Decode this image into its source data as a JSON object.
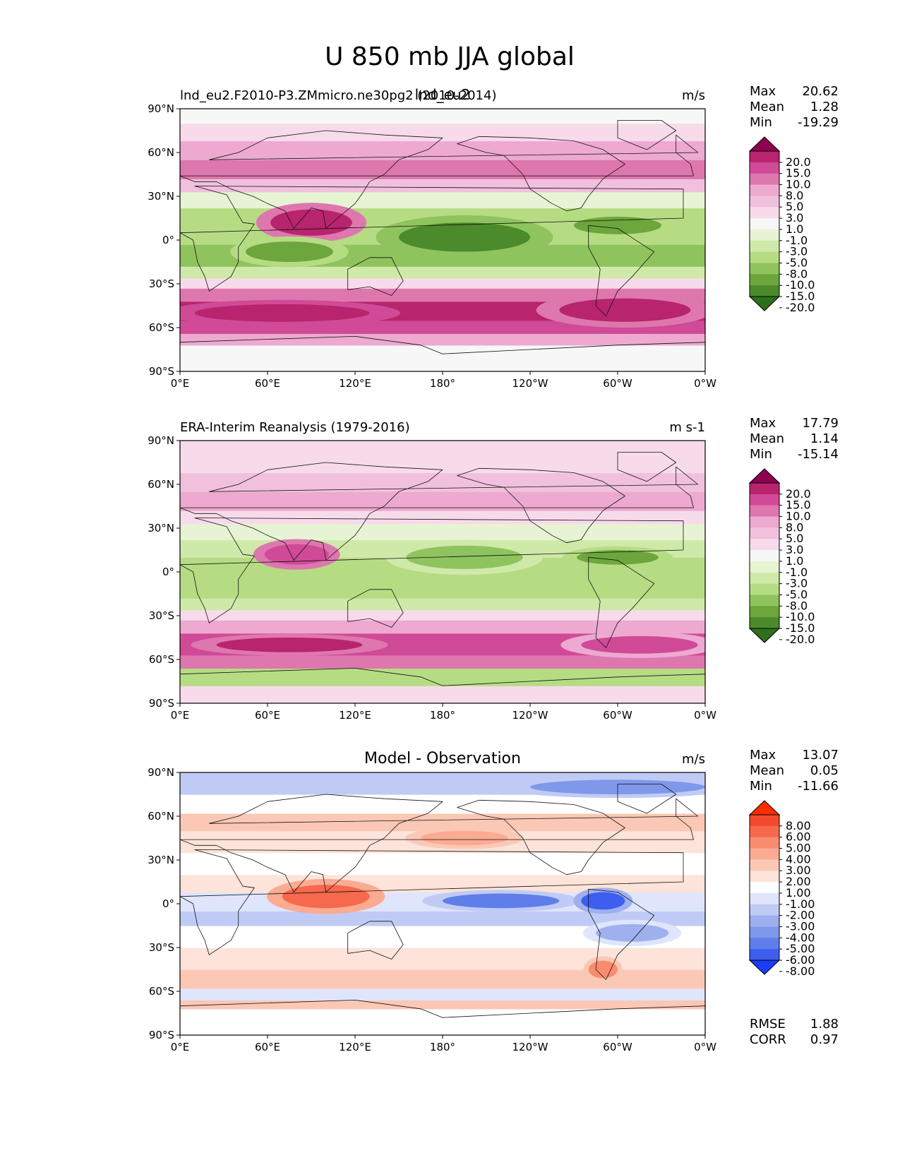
{
  "figure": {
    "title": "U 850 mb JJA global"
  },
  "chart_data": [
    {
      "type": "heatmap",
      "panel": "test",
      "title_left": "lnd_eu2.F2010-P3.ZMmicro.ne30pg2 (2010-2014)",
      "title_center": "lnd_eu2",
      "units": "m/s",
      "stats": [
        {
          "label": "Max",
          "value": "20.62"
        },
        {
          "label": "Mean",
          "value": "1.28"
        },
        {
          "label": "Min",
          "value": "-19.29"
        }
      ],
      "colorbar": {
        "labels": [
          "20.0",
          "15.0",
          "10.0",
          "8.0",
          "5.0",
          "3.0",
          "1.0",
          "-1.0",
          "-3.0",
          "-5.0",
          "-8.0",
          "-10.0",
          "-15.0",
          "-20.0"
        ],
        "colors": [
          "#8e0152",
          "#b8246e",
          "#d04a97",
          "#de77ae",
          "#eda9d0",
          "#f1c0dd",
          "#f7dbeb",
          "#f7f7f7",
          "#e7f4d3",
          "#cfe9a9",
          "#b6dc83",
          "#8fc35e",
          "#6ca63c",
          "#4b8b2b",
          "#2e6f1e"
        ]
      },
      "xlabel": "",
      "ylabel": "",
      "xticks": [
        "0°E",
        "60°E",
        "120°E",
        "180°",
        "120°W",
        "60°W",
        "0°W"
      ],
      "yticks": [
        "90°N",
        "60°N",
        "30°N",
        "0°",
        "30°S",
        "60°S",
        "90°S"
      ],
      "xlim": [
        0,
        360
      ],
      "ylim": [
        -90,
        90
      ],
      "bands": [
        {
          "lat": [
            -90,
            -72
          ],
          "value": 0.5
        },
        {
          "lat": [
            -72,
            -64
          ],
          "value": 6
        },
        {
          "lat": [
            -64,
            -55
          ],
          "value": 12
        },
        {
          "lat": [
            -55,
            -42
          ],
          "value": 16
        },
        {
          "lat": [
            -42,
            -33
          ],
          "value": 10
        },
        {
          "lat": [
            -33,
            -26
          ],
          "value": 3
        },
        {
          "lat": [
            -26,
            -18
          ],
          "value": -3
        },
        {
          "lat": [
            -18,
            -3
          ],
          "value": -9
        },
        {
          "lat": [
            -3,
            10
          ],
          "value": -7
        },
        {
          "lat": [
            10,
            22
          ],
          "value": -5
        },
        {
          "lat": [
            22,
            33
          ],
          "value": -2
        },
        {
          "lat": [
            33,
            42
          ],
          "value": 4
        },
        {
          "lat": [
            42,
            55
          ],
          "value": 9
        },
        {
          "lat": [
            55,
            68
          ],
          "value": 6
        },
        {
          "lat": [
            68,
            80
          ],
          "value": 2
        },
        {
          "lat": [
            80,
            90
          ],
          "value": 0
        }
      ],
      "features": [
        {
          "lon": 90,
          "lat": 12,
          "rlon": 28,
          "rlat": 9,
          "value": 17
        },
        {
          "lon": 195,
          "lat": 2,
          "rlon": 45,
          "rlat": 10,
          "value": -16
        },
        {
          "lon": 75,
          "lat": -8,
          "rlon": 30,
          "rlat": 7,
          "value": -14
        },
        {
          "lon": 70,
          "lat": -50,
          "rlon": 60,
          "rlat": 6,
          "value": 19
        },
        {
          "lon": 305,
          "lat": -48,
          "rlon": 45,
          "rlat": 8,
          "value": 17
        },
        {
          "lon": 300,
          "lat": 10,
          "rlon": 30,
          "rlat": 6,
          "value": -12
        }
      ]
    },
    {
      "type": "heatmap",
      "panel": "reference",
      "title_left": "ERA-Interim Reanalysis (1979-2016)",
      "units": "m s-1",
      "stats": [
        {
          "label": "Max",
          "value": "17.79"
        },
        {
          "label": "Mean",
          "value": "1.14"
        },
        {
          "label": "Min",
          "value": "-15.14"
        }
      ],
      "colorbar": {
        "labels": [
          "20.0",
          "15.0",
          "10.0",
          "8.0",
          "5.0",
          "3.0",
          "1.0",
          "-1.0",
          "-3.0",
          "-5.0",
          "-8.0",
          "-10.0",
          "-15.0",
          "-20.0"
        ],
        "colors": [
          "#8e0152",
          "#b8246e",
          "#d04a97",
          "#de77ae",
          "#eda9d0",
          "#f1c0dd",
          "#f7dbeb",
          "#f7f7f7",
          "#e7f4d3",
          "#cfe9a9",
          "#b6dc83",
          "#8fc35e",
          "#6ca63c",
          "#4b8b2b",
          "#2e6f1e"
        ]
      },
      "xlabel": "",
      "ylabel": "",
      "xticks": [
        "0°E",
        "60°E",
        "120°E",
        "180°",
        "120°W",
        "60°W",
        "0°W"
      ],
      "yticks": [
        "90°N",
        "60°N",
        "30°N",
        "0°",
        "30°S",
        "60°S",
        "90°S"
      ],
      "xlim": [
        0,
        360
      ],
      "ylim": [
        -90,
        90
      ],
      "bands": [
        {
          "lat": [
            -90,
            -78
          ],
          "value": 2
        },
        {
          "lat": [
            -78,
            -66
          ],
          "value": -6
        },
        {
          "lat": [
            -66,
            -57
          ],
          "value": 9
        },
        {
          "lat": [
            -57,
            -42
          ],
          "value": 13
        },
        {
          "lat": [
            -42,
            -33
          ],
          "value": 8
        },
        {
          "lat": [
            -33,
            -26
          ],
          "value": 3
        },
        {
          "lat": [
            -26,
            -18
          ],
          "value": -3
        },
        {
          "lat": [
            -18,
            -3
          ],
          "value": -7
        },
        {
          "lat": [
            -3,
            10
          ],
          "value": -5
        },
        {
          "lat": [
            10,
            22
          ],
          "value": -4
        },
        {
          "lat": [
            22,
            33
          ],
          "value": -1.5
        },
        {
          "lat": [
            33,
            42
          ],
          "value": 3
        },
        {
          "lat": [
            42,
            55
          ],
          "value": 6
        },
        {
          "lat": [
            55,
            68
          ],
          "value": 4
        },
        {
          "lat": [
            68,
            90
          ],
          "value": 2
        }
      ],
      "features": [
        {
          "lon": 80,
          "lat": 12,
          "rlon": 22,
          "rlat": 7,
          "value": 15
        },
        {
          "lon": 195,
          "lat": 10,
          "rlon": 40,
          "rlat": 8,
          "value": -9
        },
        {
          "lon": 75,
          "lat": -50,
          "rlon": 50,
          "rlat": 5,
          "value": 16
        },
        {
          "lon": 315,
          "lat": -50,
          "rlon": 40,
          "rlat": 6,
          "value": 14
        },
        {
          "lon": 300,
          "lat": 10,
          "rlon": 28,
          "rlat": 5,
          "value": -10
        }
      ]
    },
    {
      "type": "heatmap",
      "panel": "difference",
      "title_center": "Model - Observation",
      "units": "m/s",
      "stats": [
        {
          "label": "Max",
          "value": "13.07"
        },
        {
          "label": "Mean",
          "value": "0.05"
        },
        {
          "label": "Min",
          "value": "-11.66"
        }
      ],
      "colorbar": {
        "labels": [
          "8.00",
          "6.00",
          "5.00",
          "4.00",
          "3.00",
          "2.00",
          "1.00",
          "-1.00",
          "-2.00",
          "-3.00",
          "-4.00",
          "-5.00",
          "-6.00",
          "-8.00"
        ],
        "colors": [
          "#ff2c00",
          "#f34a2d",
          "#f6694c",
          "#f98c6e",
          "#fbab92",
          "#fcc8b6",
          "#fde3d9",
          "#ffffff",
          "#dfe5fb",
          "#c0cbf5",
          "#9fb0ef",
          "#8098ea",
          "#5f7ee9",
          "#3e5ef0",
          "#1a3cff"
        ]
      },
      "footer_stats": [
        {
          "label": "RMSE",
          "value": "1.88"
        },
        {
          "label": "CORR",
          "value": "0.97"
        }
      ],
      "xlabel": "",
      "ylabel": "",
      "xticks": [
        "0°E",
        "60°E",
        "120°E",
        "180°",
        "120°W",
        "60°W",
        "0°W"
      ],
      "yticks": [
        "90°N",
        "60°N",
        "30°N",
        "0°",
        "30°S",
        "60°S",
        "90°S"
      ],
      "xlim": [
        0,
        360
      ],
      "ylim": [
        -90,
        90
      ],
      "bands": [
        {
          "lat": [
            -90,
            -72
          ],
          "value": 0
        },
        {
          "lat": [
            -72,
            -66
          ],
          "value": 3
        },
        {
          "lat": [
            -66,
            -58
          ],
          "value": -1.5
        },
        {
          "lat": [
            -58,
            -45
          ],
          "value": 2.5
        },
        {
          "lat": [
            -45,
            -30
          ],
          "value": 1.5
        },
        {
          "lat": [
            -30,
            -15
          ],
          "value": -0.5
        },
        {
          "lat": [
            -15,
            -5
          ],
          "value": -2
        },
        {
          "lat": [
            -5,
            8
          ],
          "value": -1
        },
        {
          "lat": [
            8,
            20
          ],
          "value": 1.5
        },
        {
          "lat": [
            20,
            35
          ],
          "value": -0.5
        },
        {
          "lat": [
            35,
            50
          ],
          "value": 1.5
        },
        {
          "lat": [
            50,
            62
          ],
          "value": 2.5
        },
        {
          "lat": [
            62,
            75
          ],
          "value": 0.5
        },
        {
          "lat": [
            75,
            90
          ],
          "value": -2.5
        }
      ],
      "features": [
        {
          "lon": 100,
          "lat": 5,
          "rlon": 30,
          "rlat": 8,
          "value": 6
        },
        {
          "lon": 220,
          "lat": 2,
          "rlon": 40,
          "rlat": 5,
          "value": -5
        },
        {
          "lon": 290,
          "lat": 2,
          "rlon": 15,
          "rlat": 6,
          "value": -6
        },
        {
          "lon": 195,
          "lat": 45,
          "rlon": 30,
          "rlat": 5,
          "value": 4
        },
        {
          "lon": 310,
          "lat": -20,
          "rlon": 25,
          "rlat": 6,
          "value": -3.5
        },
        {
          "lon": 290,
          "lat": -45,
          "rlon": 10,
          "rlat": 6,
          "value": 5
        },
        {
          "lon": 300,
          "lat": 80,
          "rlon": 60,
          "rlat": 5,
          "value": -4
        }
      ]
    }
  ]
}
